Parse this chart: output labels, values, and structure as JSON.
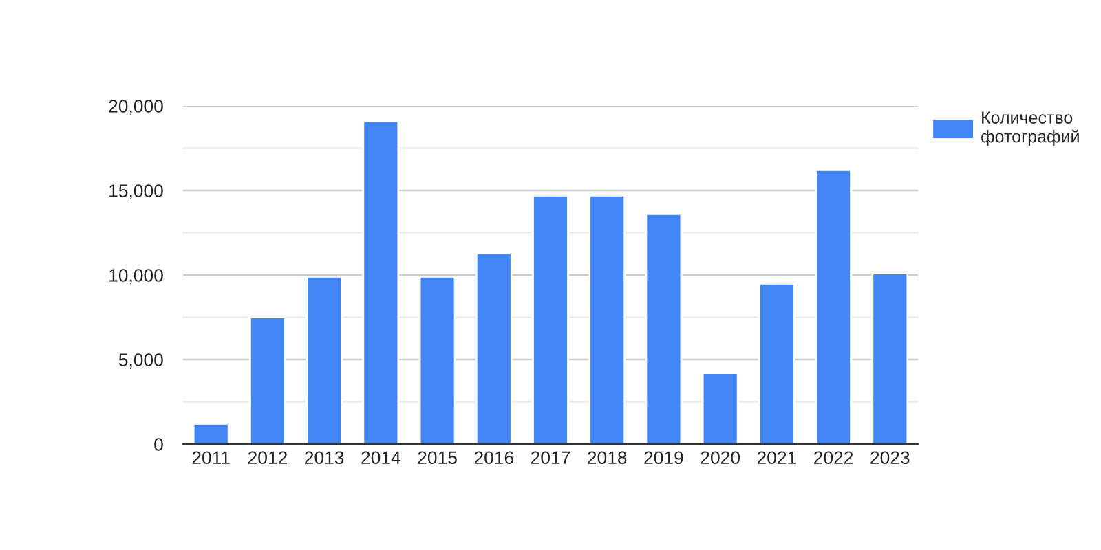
{
  "chart_data": {
    "type": "bar",
    "categories": [
      "2011",
      "2012",
      "2013",
      "2014",
      "2015",
      "2016",
      "2017",
      "2018",
      "2019",
      "2020",
      "2021",
      "2022",
      "2023"
    ],
    "series": [
      {
        "name": "Количество фотографий",
        "color": "#4285f4",
        "values": [
          1200,
          7500,
          9900,
          19100,
          9900,
          11300,
          14700,
          14700,
          13600,
          4200,
          9500,
          16200,
          10100
        ]
      }
    ],
    "ylim": [
      0,
      20000
    ],
    "yticks": [
      0,
      {
        "value": 2500,
        "label": null
      },
      {
        "value": 5000,
        "label": "5,000"
      },
      {
        "value": 7500,
        "label": null
      },
      {
        "value": 10000,
        "label": "10,000"
      },
      {
        "value": 12500,
        "label": null
      },
      {
        "value": 15000,
        "label": "15,000"
      },
      {
        "value": 17500,
        "label": null
      },
      {
        "value": 20000,
        "label": "20,000"
      }
    ],
    "grid": "y",
    "legend": "top right"
  }
}
